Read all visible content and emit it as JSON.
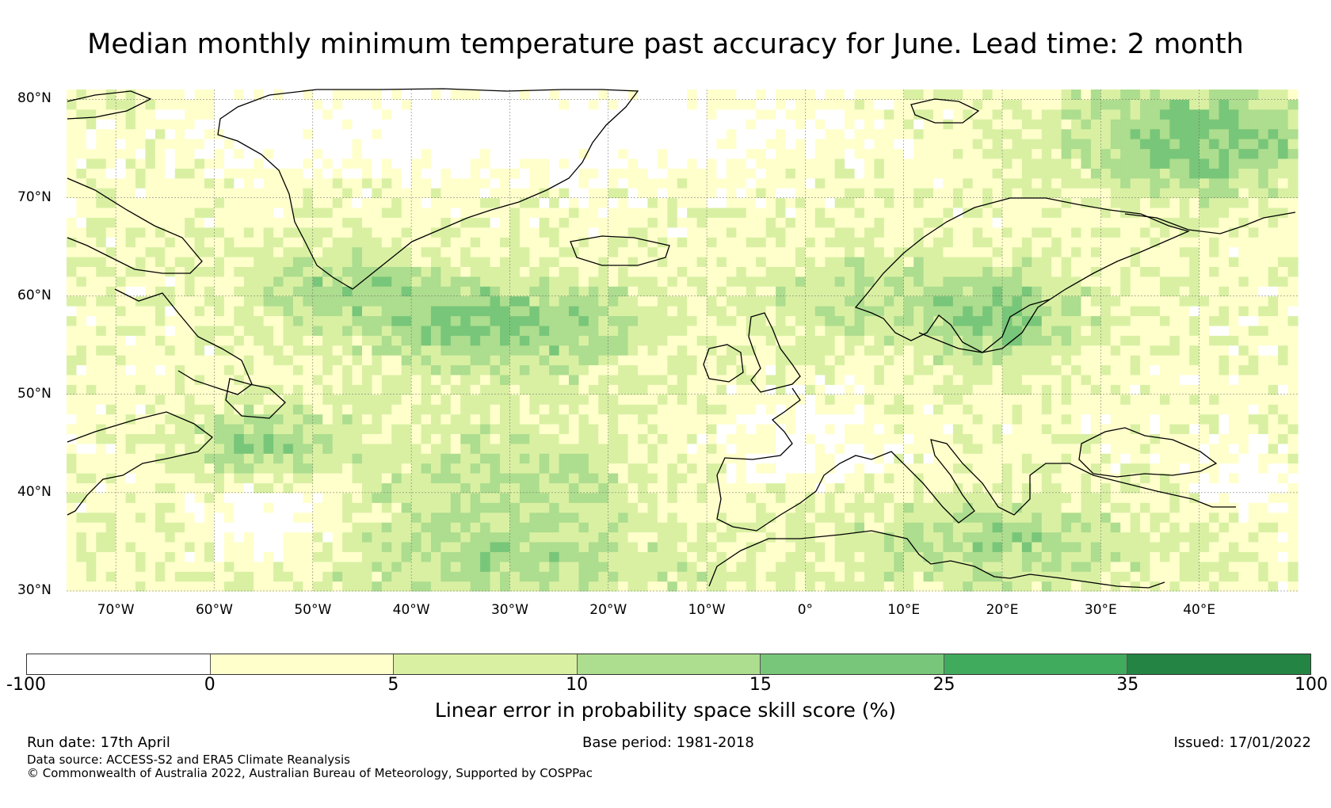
{
  "title": "Median monthly minimum temperature past accuracy for June. Lead time: 2 month",
  "map": {
    "lon_range": [
      -75,
      50
    ],
    "lat_range": [
      30,
      81
    ],
    "lat_labels": [
      "80°N",
      "70°N",
      "60°N",
      "50°N",
      "40°N",
      "30°N"
    ],
    "lon_labels": [
      "70°W",
      "60°W",
      "50°W",
      "40°W",
      "30°W",
      "20°W",
      "10°W",
      "0°",
      "10°E",
      "20°E",
      "30°E",
      "40°E"
    ],
    "gridlines": true
  },
  "colorbar": {
    "ticks": [
      "-100",
      "0",
      "5",
      "10",
      "15",
      "25",
      "35",
      "100"
    ],
    "colors": [
      "#ffffff",
      "#ffffcc",
      "#d9f0a3",
      "#addd8e",
      "#78c679",
      "#41ab5d",
      "#238443"
    ],
    "label": "Linear error in probability space skill score (%)"
  },
  "footer": {
    "run_date": "Run date: 17th April",
    "base_period": "Base period: 1981-2018",
    "issued": "Issued: 17/01/2022",
    "data_source": "Data source: ACCESS-S2 and ERA5 Climate Reanalysis",
    "copyright": "© Commonwealth of Australia 2022, Australian Bureau of Meteorology, Supported by COSPPac"
  }
}
